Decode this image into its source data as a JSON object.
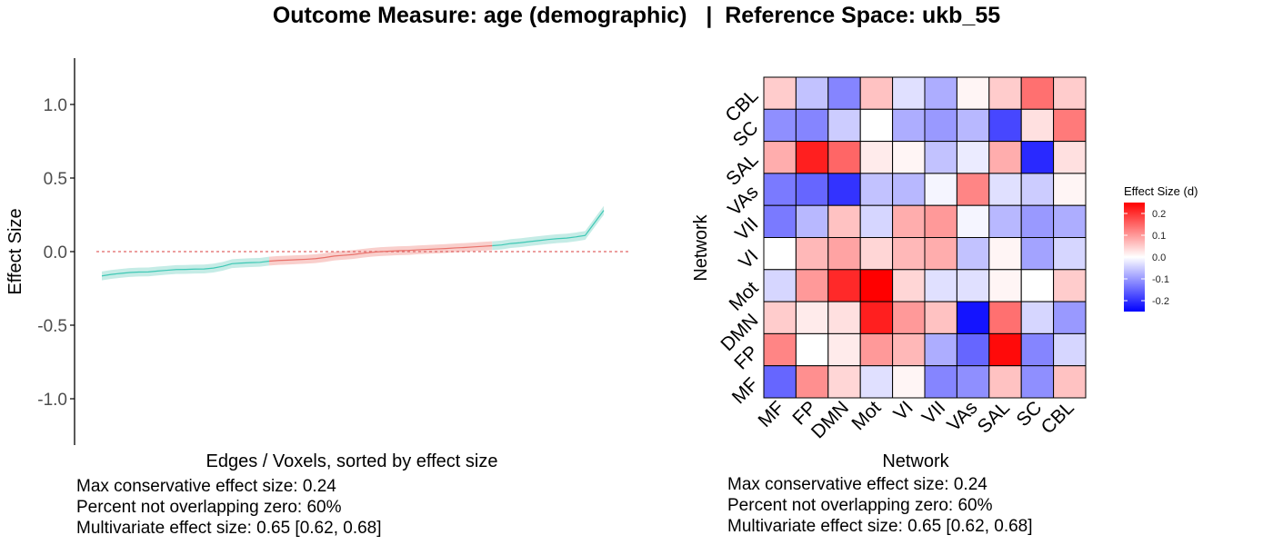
{
  "title": "Outcome Measure: age (demographic)   |  Reference Space: ukb_55",
  "chart_data": [
    {
      "type": "line",
      "xlabel": "Edges / Voxels, sorted by effect size",
      "ylabel": "Effect Size",
      "ylim": [
        -1.3,
        1.3
      ],
      "yticks": [
        1.0,
        0.5,
        0.0,
        -0.5,
        -1.0
      ],
      "ytick_labels": [
        "1.0",
        "0.5",
        "0.0",
        "-0.5",
        "-1.0"
      ],
      "reference_line": 0,
      "n_points": 55,
      "series": [
        {
          "values": [
            -0.165,
            -0.155,
            -0.148,
            -0.142,
            -0.139,
            -0.138,
            -0.132,
            -0.127,
            -0.122,
            -0.121,
            -0.119,
            -0.118,
            -0.112,
            -0.1,
            -0.082,
            -0.078,
            -0.075,
            -0.073,
            -0.065,
            -0.06,
            -0.058,
            -0.055,
            -0.052,
            -0.048,
            -0.04,
            -0.03,
            -0.025,
            -0.02,
            -0.012,
            -0.005,
            0.0,
            0.003,
            0.006,
            0.008,
            0.012,
            0.015,
            0.018,
            0.021,
            0.025,
            0.028,
            0.032,
            0.036,
            0.04,
            0.045,
            0.055,
            0.06,
            0.068,
            0.075,
            0.082,
            0.088,
            0.092,
            0.1,
            0.11,
            0.195,
            0.28
          ],
          "ci_halfwidth": 0.03,
          "overlap_zero_range": [
            18,
            42
          ]
        }
      ],
      "annotations": [
        "Max conservative effect size: 0.24",
        "Percent not overlapping zero: 60%",
        "Multivariate effect size: 0.65 [0.62, 0.68]"
      ],
      "colors": {
        "line": "#3fc8b5",
        "band": "#c5ece6",
        "zero_line": "#e06666",
        "overlap_line": "#e8716a",
        "overlap_band": "#f9cfcc"
      }
    },
    {
      "type": "heatmap",
      "xlabel": "Network",
      "ylabel": "Network",
      "x_categories": [
        "MF",
        "FP",
        "DMN",
        "Mot",
        "VI",
        "VII",
        "VAs",
        "SAL",
        "SC",
        "CBL"
      ],
      "y_categories": [
        "CBL",
        "SC",
        "SAL",
        "VAs",
        "VII",
        "VI",
        "Mot",
        "DMN",
        "FP",
        "MF"
      ],
      "values": [
        [
          0.05,
          -0.06,
          -0.12,
          0.06,
          -0.03,
          -0.08,
          0.01,
          0.05,
          0.14,
          0.05
        ],
        [
          -0.11,
          -0.12,
          -0.05,
          0.0,
          -0.08,
          -0.1,
          -0.07,
          -0.18,
          0.03,
          0.13
        ],
        [
          0.08,
          0.22,
          0.15,
          0.02,
          0.01,
          -0.06,
          -0.02,
          0.08,
          -0.21,
          0.03
        ],
        [
          -0.13,
          -0.15,
          -0.2,
          -0.06,
          -0.07,
          -0.01,
          0.12,
          -0.03,
          -0.05,
          0.01
        ],
        [
          -0.13,
          -0.07,
          0.06,
          -0.04,
          0.08,
          0.1,
          -0.01,
          -0.07,
          -0.1,
          -0.08
        ],
        [
          0.0,
          0.07,
          0.09,
          0.04,
          0.07,
          0.08,
          -0.06,
          0.01,
          -0.09,
          -0.04
        ],
        [
          -0.04,
          0.1,
          0.21,
          0.3,
          0.04,
          -0.03,
          -0.03,
          0.01,
          0.0,
          0.05
        ],
        [
          0.05,
          0.02,
          0.03,
          0.22,
          0.1,
          0.06,
          -0.23,
          0.14,
          -0.04,
          -0.1
        ],
        [
          0.12,
          0.0,
          0.02,
          0.1,
          0.07,
          -0.08,
          -0.15,
          0.24,
          -0.12,
          -0.04
        ],
        [
          -0.15,
          0.11,
          0.04,
          -0.03,
          0.01,
          -0.12,
          -0.11,
          0.06,
          -0.11,
          0.06
        ]
      ],
      "legend_title": "Effect Size (d)",
      "legend_ticks": [
        0.2,
        0.1,
        0.0,
        -0.1,
        -0.2
      ],
      "legend_tick_labels": [
        "0.2",
        "0.1",
        "0.0",
        "-0.1",
        "-0.2"
      ],
      "color_limits": [
        -0.25,
        0.25
      ],
      "colors": {
        "low": "#0000ff",
        "mid": "#ffffff",
        "high": "#ff0000"
      },
      "annotations": [
        "Max conservative effect size: 0.24",
        "Percent not overlapping zero: 60%",
        "Multivariate effect size: 0.65 [0.62, 0.68]"
      ]
    }
  ]
}
